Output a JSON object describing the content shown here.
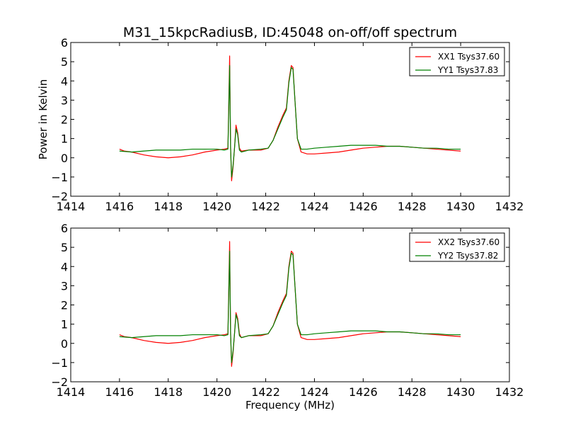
{
  "chart_data": [
    {
      "type": "line",
      "title": "M31_15kpcRadiusB, ID:45048 on-off/off spectrum",
      "xlabel": "",
      "ylabel": "Power in Kelvin",
      "xlim": [
        1414,
        1432
      ],
      "ylim": [
        -2,
        6
      ],
      "xticks": [
        "1414",
        "1416",
        "1418",
        "1420",
        "1422",
        "1424",
        "1426",
        "1428",
        "1430",
        "1432"
      ],
      "yticks": [
        "−2",
        "−1",
        "0",
        "1",
        "2",
        "3",
        "4",
        "5",
        "6"
      ],
      "legend_position": "top-right",
      "series": [
        {
          "name": "XX1 Tsys37.60",
          "color": "#ff0000",
          "points": [
            [
              1416.0,
              0.45
            ],
            [
              1416.2,
              0.35
            ],
            [
              1416.5,
              0.3
            ],
            [
              1417.0,
              0.15
            ],
            [
              1417.5,
              0.05
            ],
            [
              1418.0,
              0.0
            ],
            [
              1418.5,
              0.05
            ],
            [
              1419.0,
              0.15
            ],
            [
              1419.5,
              0.3
            ],
            [
              1420.0,
              0.4
            ],
            [
              1420.3,
              0.45
            ],
            [
              1420.45,
              0.5
            ],
            [
              1420.52,
              5.3
            ],
            [
              1420.56,
              0.5
            ],
            [
              1420.6,
              -1.2
            ],
            [
              1420.66,
              -0.5
            ],
            [
              1420.72,
              0.5
            ],
            [
              1420.78,
              1.7
            ],
            [
              1420.85,
              1.3
            ],
            [
              1420.92,
              0.5
            ],
            [
              1421.0,
              0.35
            ],
            [
              1421.3,
              0.4
            ],
            [
              1421.8,
              0.4
            ],
            [
              1422.1,
              0.5
            ],
            [
              1422.3,
              0.9
            ],
            [
              1422.5,
              1.6
            ],
            [
              1422.7,
              2.2
            ],
            [
              1422.85,
              2.6
            ],
            [
              1422.95,
              4.0
            ],
            [
              1423.05,
              4.8
            ],
            [
              1423.12,
              4.7
            ],
            [
              1423.2,
              3.0
            ],
            [
              1423.3,
              1.0
            ],
            [
              1423.45,
              0.3
            ],
            [
              1423.7,
              0.2
            ],
            [
              1424.0,
              0.2
            ],
            [
              1424.5,
              0.25
            ],
            [
              1425.0,
              0.3
            ],
            [
              1425.5,
              0.4
            ],
            [
              1426.0,
              0.5
            ],
            [
              1426.5,
              0.55
            ],
            [
              1427.0,
              0.6
            ],
            [
              1427.5,
              0.6
            ],
            [
              1428.0,
              0.55
            ],
            [
              1428.5,
              0.5
            ],
            [
              1429.0,
              0.45
            ],
            [
              1429.5,
              0.4
            ],
            [
              1430.0,
              0.35
            ]
          ]
        },
        {
          "name": "YY1 Tsys37.83",
          "color": "#008000",
          "points": [
            [
              1416.0,
              0.35
            ],
            [
              1416.5,
              0.3
            ],
            [
              1417.0,
              0.35
            ],
            [
              1417.5,
              0.4
            ],
            [
              1418.0,
              0.4
            ],
            [
              1418.5,
              0.4
            ],
            [
              1419.0,
              0.45
            ],
            [
              1419.5,
              0.45
            ],
            [
              1420.0,
              0.45
            ],
            [
              1420.3,
              0.4
            ],
            [
              1420.45,
              0.45
            ],
            [
              1420.52,
              4.8
            ],
            [
              1420.56,
              0.5
            ],
            [
              1420.6,
              -1.0
            ],
            [
              1420.66,
              -0.4
            ],
            [
              1420.72,
              0.5
            ],
            [
              1420.78,
              1.5
            ],
            [
              1420.85,
              1.2
            ],
            [
              1420.92,
              0.4
            ],
            [
              1421.0,
              0.3
            ],
            [
              1421.3,
              0.4
            ],
            [
              1421.8,
              0.45
            ],
            [
              1422.1,
              0.5
            ],
            [
              1422.3,
              0.9
            ],
            [
              1422.5,
              1.5
            ],
            [
              1422.7,
              2.1
            ],
            [
              1422.85,
              2.5
            ],
            [
              1422.95,
              3.9
            ],
            [
              1423.05,
              4.7
            ],
            [
              1423.12,
              4.6
            ],
            [
              1423.2,
              3.0
            ],
            [
              1423.3,
              1.0
            ],
            [
              1423.45,
              0.45
            ],
            [
              1423.7,
              0.45
            ],
            [
              1424.0,
              0.5
            ],
            [
              1424.5,
              0.55
            ],
            [
              1425.0,
              0.6
            ],
            [
              1425.5,
              0.65
            ],
            [
              1426.0,
              0.65
            ],
            [
              1426.5,
              0.65
            ],
            [
              1427.0,
              0.6
            ],
            [
              1427.5,
              0.6
            ],
            [
              1428.0,
              0.55
            ],
            [
              1428.5,
              0.5
            ],
            [
              1429.0,
              0.5
            ],
            [
              1429.5,
              0.45
            ],
            [
              1430.0,
              0.45
            ]
          ]
        }
      ]
    },
    {
      "type": "line",
      "title": "",
      "xlabel": "Frequency (MHz)",
      "ylabel": "",
      "xlim": [
        1414,
        1432
      ],
      "ylim": [
        -2,
        6
      ],
      "xticks": [
        "1414",
        "1416",
        "1418",
        "1420",
        "1422",
        "1424",
        "1426",
        "1428",
        "1430",
        "1432"
      ],
      "yticks": [
        "−2",
        "−1",
        "0",
        "1",
        "2",
        "3",
        "4",
        "5",
        "6"
      ],
      "legend_position": "top-right",
      "series": [
        {
          "name": "XX2 Tsys37.60",
          "color": "#ff0000",
          "points": [
            [
              1416.0,
              0.45
            ],
            [
              1416.2,
              0.35
            ],
            [
              1416.5,
              0.3
            ],
            [
              1417.0,
              0.15
            ],
            [
              1417.5,
              0.05
            ],
            [
              1418.0,
              0.0
            ],
            [
              1418.5,
              0.05
            ],
            [
              1419.0,
              0.15
            ],
            [
              1419.5,
              0.3
            ],
            [
              1420.0,
              0.4
            ],
            [
              1420.3,
              0.45
            ],
            [
              1420.45,
              0.5
            ],
            [
              1420.52,
              5.3
            ],
            [
              1420.56,
              0.5
            ],
            [
              1420.6,
              -1.2
            ],
            [
              1420.66,
              -0.5
            ],
            [
              1420.72,
              0.5
            ],
            [
              1420.78,
              1.6
            ],
            [
              1420.85,
              1.3
            ],
            [
              1420.92,
              0.5
            ],
            [
              1421.0,
              0.3
            ],
            [
              1421.3,
              0.4
            ],
            [
              1421.8,
              0.4
            ],
            [
              1422.1,
              0.5
            ],
            [
              1422.3,
              0.9
            ],
            [
              1422.5,
              1.6
            ],
            [
              1422.7,
              2.2
            ],
            [
              1422.85,
              2.6
            ],
            [
              1422.95,
              4.0
            ],
            [
              1423.05,
              4.8
            ],
            [
              1423.12,
              4.7
            ],
            [
              1423.2,
              3.0
            ],
            [
              1423.3,
              1.0
            ],
            [
              1423.45,
              0.3
            ],
            [
              1423.7,
              0.2
            ],
            [
              1424.0,
              0.2
            ],
            [
              1424.5,
              0.25
            ],
            [
              1425.0,
              0.3
            ],
            [
              1425.5,
              0.4
            ],
            [
              1426.0,
              0.5
            ],
            [
              1426.5,
              0.55
            ],
            [
              1427.0,
              0.6
            ],
            [
              1427.5,
              0.6
            ],
            [
              1428.0,
              0.55
            ],
            [
              1428.5,
              0.5
            ],
            [
              1429.0,
              0.45
            ],
            [
              1429.5,
              0.4
            ],
            [
              1430.0,
              0.35
            ]
          ]
        },
        {
          "name": "YY2 Tsys37.82",
          "color": "#008000",
          "points": [
            [
              1416.0,
              0.35
            ],
            [
              1416.5,
              0.3
            ],
            [
              1417.0,
              0.35
            ],
            [
              1417.5,
              0.4
            ],
            [
              1418.0,
              0.4
            ],
            [
              1418.5,
              0.4
            ],
            [
              1419.0,
              0.45
            ],
            [
              1419.5,
              0.45
            ],
            [
              1420.0,
              0.45
            ],
            [
              1420.3,
              0.4
            ],
            [
              1420.45,
              0.45
            ],
            [
              1420.52,
              4.8
            ],
            [
              1420.56,
              0.5
            ],
            [
              1420.6,
              -1.0
            ],
            [
              1420.66,
              -0.4
            ],
            [
              1420.72,
              0.5
            ],
            [
              1420.78,
              1.5
            ],
            [
              1420.85,
              1.2
            ],
            [
              1420.92,
              0.4
            ],
            [
              1421.0,
              0.3
            ],
            [
              1421.3,
              0.4
            ],
            [
              1421.8,
              0.45
            ],
            [
              1422.1,
              0.5
            ],
            [
              1422.3,
              0.9
            ],
            [
              1422.5,
              1.5
            ],
            [
              1422.7,
              2.1
            ],
            [
              1422.85,
              2.5
            ],
            [
              1422.95,
              3.9
            ],
            [
              1423.05,
              4.7
            ],
            [
              1423.12,
              4.6
            ],
            [
              1423.2,
              3.0
            ],
            [
              1423.3,
              1.0
            ],
            [
              1423.45,
              0.45
            ],
            [
              1423.7,
              0.45
            ],
            [
              1424.0,
              0.5
            ],
            [
              1424.5,
              0.55
            ],
            [
              1425.0,
              0.6
            ],
            [
              1425.5,
              0.65
            ],
            [
              1426.0,
              0.65
            ],
            [
              1426.5,
              0.65
            ],
            [
              1427.0,
              0.6
            ],
            [
              1427.5,
              0.6
            ],
            [
              1428.0,
              0.55
            ],
            [
              1428.5,
              0.5
            ],
            [
              1429.0,
              0.5
            ],
            [
              1429.5,
              0.45
            ],
            [
              1430.0,
              0.45
            ]
          ]
        }
      ]
    }
  ]
}
